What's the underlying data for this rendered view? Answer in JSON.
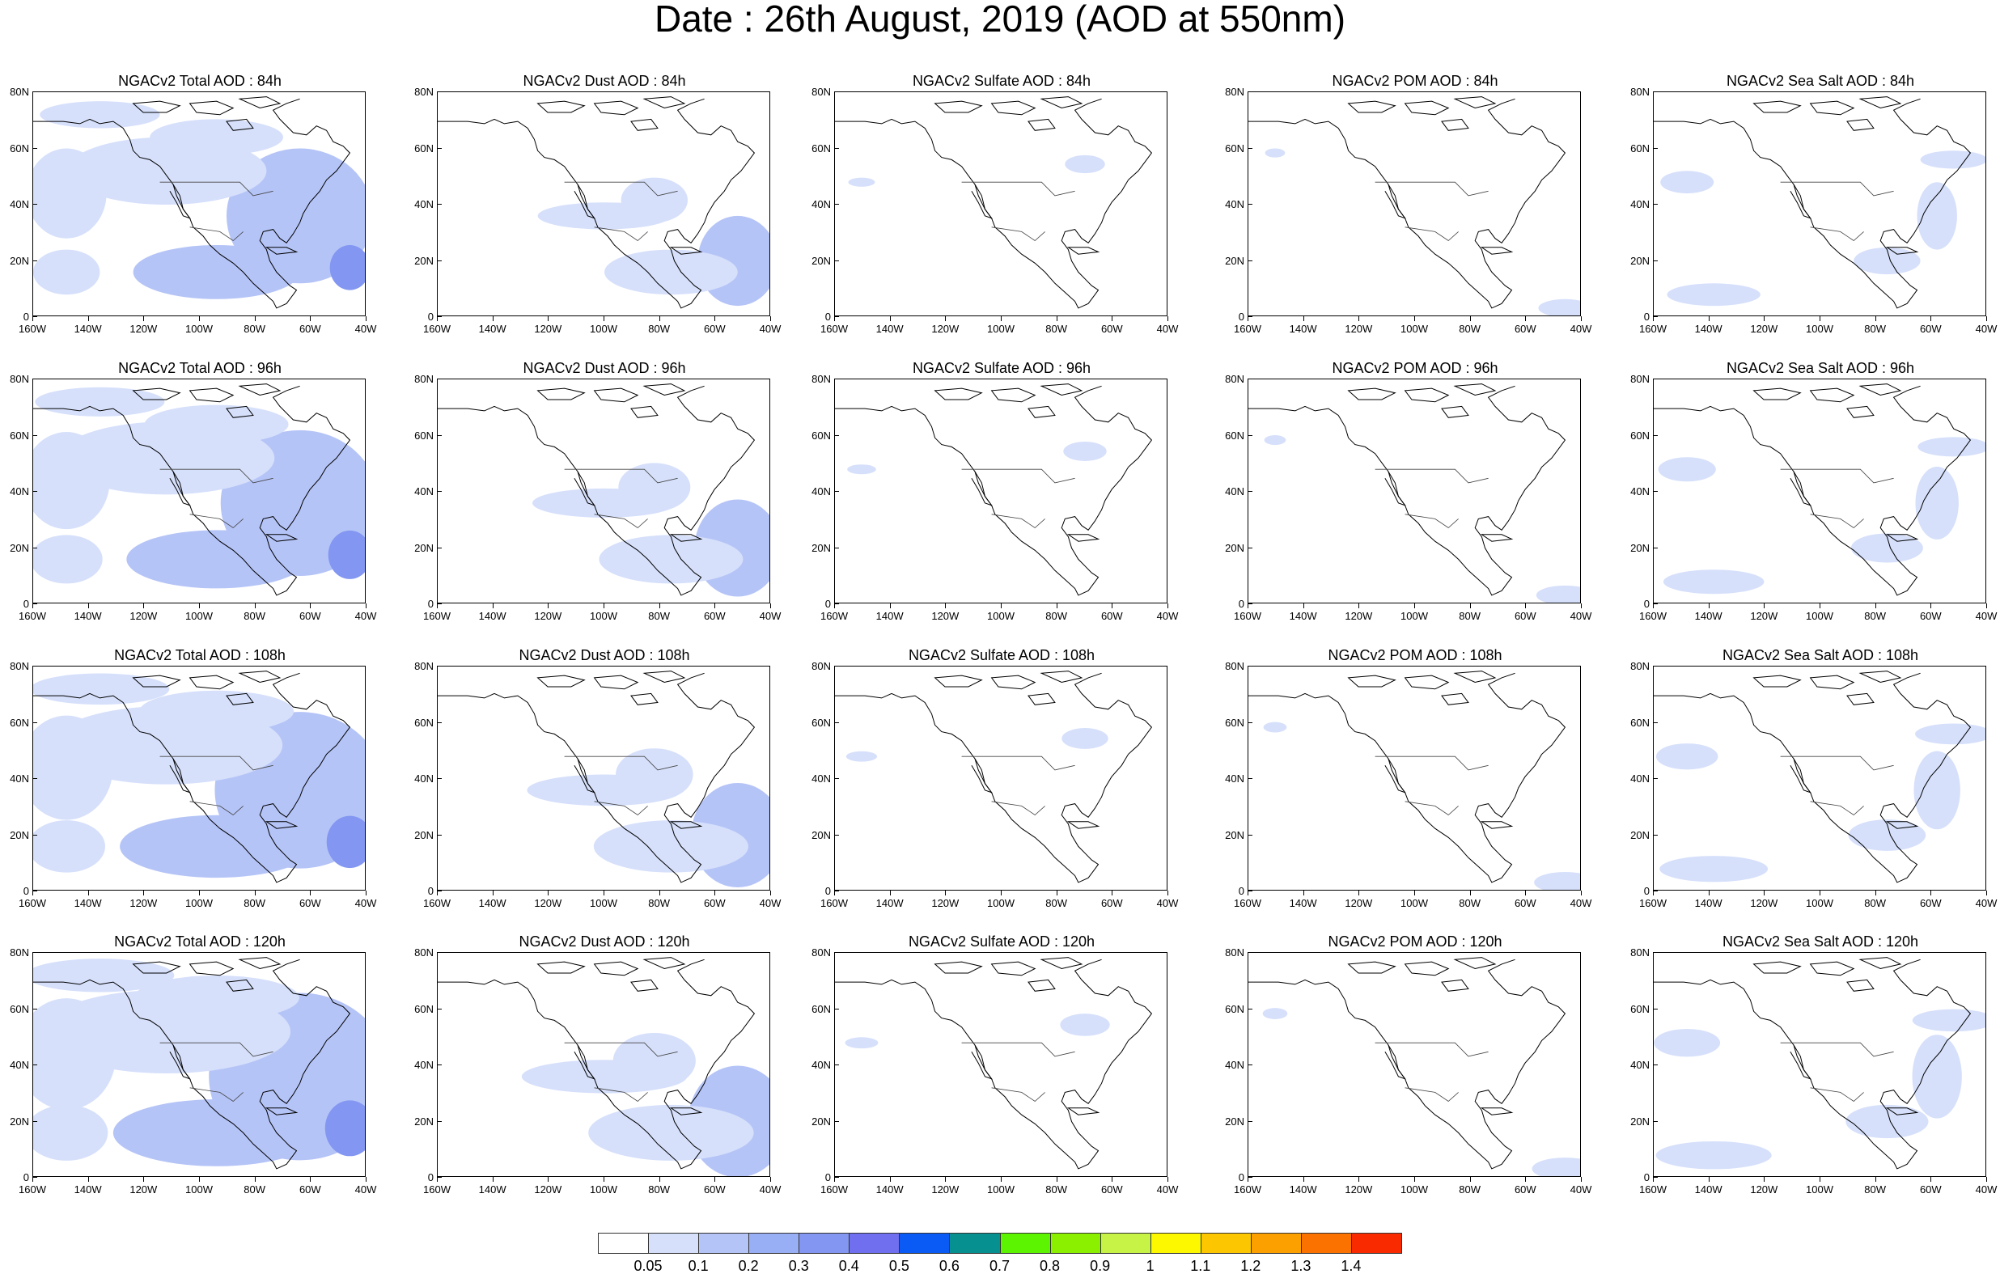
{
  "title": "Date : 26th August, 2019 (AOD at 550nm)",
  "panels": [
    [
      "NGACv2 Total AOD : 84h",
      "NGACv2 Dust AOD : 84h",
      "NGACv2 Sulfate AOD : 84h",
      "NGACv2 POM AOD : 84h",
      "NGACv2 Sea Salt AOD : 84h"
    ],
    [
      "NGACv2 Total AOD : 96h",
      "NGACv2 Dust AOD : 96h",
      "NGACv2 Sulfate AOD : 96h",
      "NGACv2 POM AOD : 96h",
      "NGACv2 Sea Salt AOD : 96h"
    ],
    [
      "NGACv2 Total AOD : 108h",
      "NGACv2 Dust AOD : 108h",
      "NGACv2 Sulfate AOD : 108h",
      "NGACv2 POM AOD : 108h",
      "NGACv2 Sea Salt AOD : 108h"
    ],
    [
      "NGACv2 Total AOD : 120h",
      "NGACv2 Dust AOD : 120h",
      "NGACv2 Sulfate AOD : 120h",
      "NGACv2 POM AOD : 120h",
      "NGACv2 Sea Salt  AOD : 120h"
    ]
  ],
  "lat_ticks": [
    "80N",
    "60N",
    "40N",
    "20N",
    "0"
  ],
  "lon_ticks": [
    "160W",
    "140W",
    "120W",
    "100W",
    "80W",
    "60W",
    "40W"
  ],
  "colorbar": {
    "labels": [
      "0.05",
      "0.1",
      "0.2",
      "0.3",
      "0.4",
      "0.5",
      "0.6",
      "0.7",
      "0.8",
      "0.9",
      "1",
      "1.1",
      "1.2",
      "1.3",
      "1.4"
    ],
    "colors": [
      "#ffffff",
      "#d6e0fb",
      "#b5c4f7",
      "#98aef5",
      "#8296f2",
      "#6f6ff0",
      "#0a5af5",
      "#079090",
      "#5cf400",
      "#8bf000",
      "#c7f246",
      "#fdf700",
      "#fcc600",
      "#fca000",
      "#fb7200",
      "#fa2a00"
    ]
  },
  "map_colors": {
    "light": "#d6e0fb",
    "mid": "#b5c4f7",
    "dark": "#8296f2",
    "coast": "#000000"
  }
}
